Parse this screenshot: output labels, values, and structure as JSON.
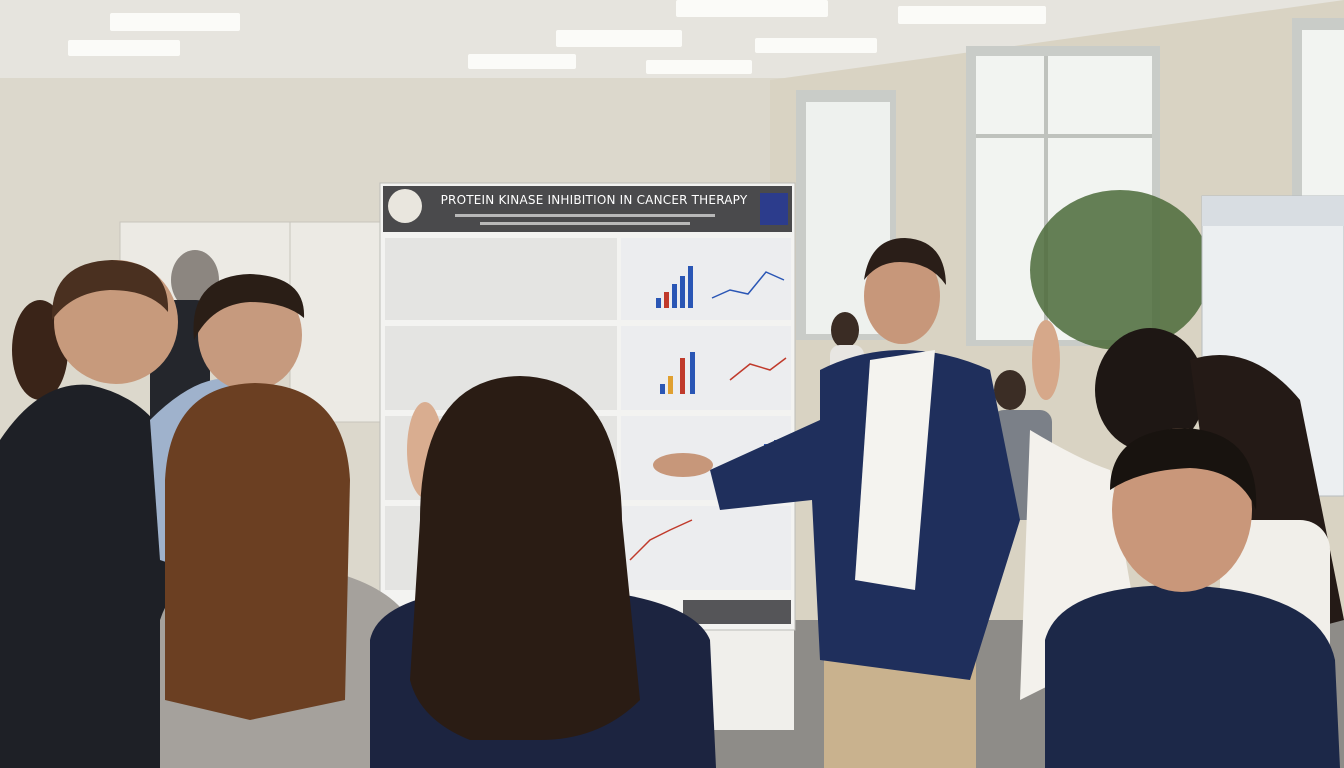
{
  "poster": {
    "title": "PROTEIN KINASE INHIBITION IN CANCER THERAPY"
  }
}
